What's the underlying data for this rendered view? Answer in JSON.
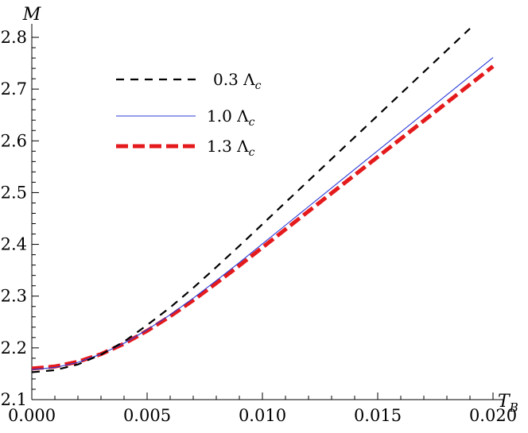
{
  "chart_data": {
    "type": "line",
    "xlabel": "T",
    "xlabel_sub": "B",
    "ylabel": "M",
    "xlim": [
      0.0,
      0.02
    ],
    "ylim": [
      2.1,
      2.8
    ],
    "xticks": [
      0.0,
      0.005,
      0.01,
      0.015,
      0.02
    ],
    "xtick_labels": [
      "0.000",
      "0.005",
      "0.010",
      "0.015",
      "0.020"
    ],
    "yticks": [
      2.1,
      2.2,
      2.3,
      2.4,
      2.5,
      2.6,
      2.7,
      2.8
    ],
    "ytick_labels": [
      "2.1",
      "2.2",
      "2.3",
      "2.4",
      "2.5",
      "2.6",
      "2.7",
      "2.8"
    ],
    "legend_position": "top-left",
    "series": [
      {
        "name": "0.3 Λ",
        "name_sub": "c",
        "color": "#000000",
        "style": "dashed",
        "x": [
          0.0,
          0.001,
          0.002,
          0.003,
          0.004,
          0.005,
          0.006,
          0.007,
          0.008,
          0.009,
          0.01,
          0.011,
          0.012,
          0.013,
          0.014,
          0.015,
          0.016,
          0.017,
          0.018,
          0.019
        ],
        "y": [
          2.153,
          2.157,
          2.168,
          2.187,
          2.212,
          2.244,
          2.278,
          2.316,
          2.356,
          2.397,
          2.439,
          2.481,
          2.523,
          2.565,
          2.607,
          2.649,
          2.691,
          2.733,
          2.775,
          2.817
        ]
      },
      {
        "name": "1.0 Λ",
        "name_sub": "c",
        "color": "#2a3bd8",
        "style": "solid",
        "x": [
          0.0,
          0.001,
          0.002,
          0.003,
          0.004,
          0.005,
          0.006,
          0.007,
          0.008,
          0.009,
          0.01,
          0.011,
          0.012,
          0.013,
          0.014,
          0.015,
          0.016,
          0.017,
          0.018,
          0.019,
          0.02
        ],
        "y": [
          2.158,
          2.162,
          2.172,
          2.188,
          2.209,
          2.235,
          2.264,
          2.296,
          2.33,
          2.365,
          2.401,
          2.437,
          2.473,
          2.509,
          2.545,
          2.581,
          2.617,
          2.653,
          2.689,
          2.725,
          2.761
        ]
      },
      {
        "name": "1.3 Λ",
        "name_sub": "c",
        "color": "#e41a1c",
        "style": "thick-dashed",
        "x": [
          0.0,
          0.001,
          0.002,
          0.003,
          0.004,
          0.005,
          0.006,
          0.007,
          0.008,
          0.009,
          0.01,
          0.011,
          0.012,
          0.013,
          0.014,
          0.015,
          0.016,
          0.017,
          0.018,
          0.019,
          0.02
        ],
        "y": [
          2.16,
          2.164,
          2.173,
          2.188,
          2.208,
          2.233,
          2.261,
          2.292,
          2.325,
          2.359,
          2.394,
          2.429,
          2.464,
          2.499,
          2.534,
          2.569,
          2.604,
          2.639,
          2.674,
          2.709,
          2.744
        ]
      }
    ]
  }
}
